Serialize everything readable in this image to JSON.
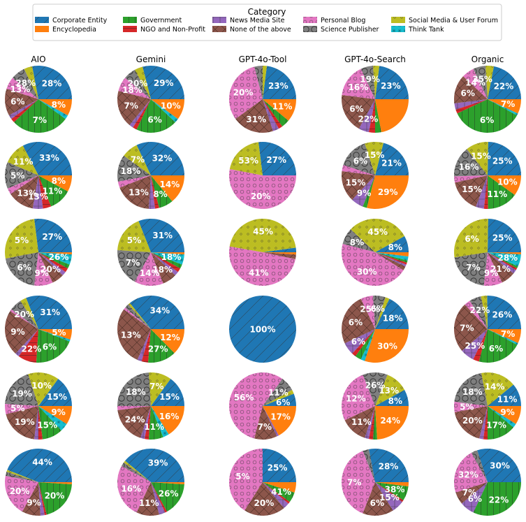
{
  "legend": {
    "title": "Category",
    "items": [
      {
        "label": "Corporate Entity",
        "color": "#1f77b4",
        "hatch": "slash"
      },
      {
        "label": "Encyclopedia",
        "color": "#ff7f0e",
        "hatch": "none"
      },
      {
        "label": "Government",
        "color": "#2ca02c",
        "hatch": "vline"
      },
      {
        "label": "NGO and Non-Profit",
        "color": "#d62728",
        "hatch": "hline"
      },
      {
        "label": "News Media Site",
        "color": "#9467bd",
        "hatch": "grid"
      },
      {
        "label": "None of the above",
        "color": "#8c564b",
        "hatch": "cross"
      },
      {
        "label": "Personal Blog",
        "color": "#e377c2",
        "hatch": "circle"
      },
      {
        "label": "Science Publisher",
        "color": "#7f7f7f",
        "hatch": "bigcircle"
      },
      {
        "label": "Social Media & User Forum",
        "color": "#bcbd22",
        "hatch": "dot"
      },
      {
        "label": "Think Tank",
        "color": "#17becf",
        "hatch": "star"
      }
    ]
  },
  "chart_data": {
    "type": "pie",
    "columns": [
      "AIO",
      "Gemini",
      "GPT-4o-Tool",
      "GPT-4o-Search",
      "Organic"
    ],
    "rows": [
      [
        [
          28,
          0,
          4,
          7,
          6,
          13,
          2,
          2,
          28,
          2,
          8
        ],
        [
          29,
          0,
          4,
          6,
          7,
          18,
          2,
          2,
          20,
          2,
          10
        ],
        [
          23,
          0,
          2,
          4,
          31,
          20,
          3,
          2,
          4,
          0,
          11
        ],
        [
          23,
          0,
          3,
          6,
          16,
          19,
          5,
          3,
          3,
          0,
          22
        ],
        [
          22,
          0,
          4,
          6,
          6,
          14,
          3,
          2,
          35,
          1,
          7
        ]
      ],
      [
        [
          33,
          0,
          11,
          13,
          3,
          13,
          5,
          4,
          11,
          0,
          8
        ],
        [
          32,
          0,
          8,
          13,
          3,
          18,
          3,
          2,
          7,
          0,
          14
        ],
        [
          27,
          0,
          20,
          0,
          53,
          0,
          0,
          0,
          0,
          0,
          0
        ],
        [
          21,
          0,
          9,
          15,
          3,
          15,
          6,
          0,
          2,
          0,
          29
        ],
        [
          25,
          0,
          11,
          15,
          3,
          16,
          4,
          2,
          15,
          0,
          10
        ]
      ],
      [
        [
          27,
          0,
          26,
          20,
          9,
          6,
          2,
          2,
          2,
          5,
          1
        ],
        [
          31,
          0,
          18,
          18,
          14,
          7,
          2,
          2,
          2,
          5,
          1
        ],
        [
          2,
          0,
          41,
          0,
          45,
          2,
          0,
          0,
          0,
          0,
          1
        ],
        [
          8,
          0,
          30,
          8,
          45,
          2,
          1,
          1,
          1,
          2,
          2
        ],
        [
          25,
          0,
          28,
          21,
          9,
          7,
          2,
          1,
          1,
          6,
          1
        ]
      ],
      [
        [
          31,
          0,
          3,
          6,
          1,
          22,
          2,
          9,
          20,
          1,
          5
        ],
        [
          34,
          0,
          1,
          2,
          1,
          27,
          2,
          3,
          13,
          0,
          12
        ],
        [
          100,
          0,
          0,
          0,
          0,
          0,
          0,
          0,
          0,
          0,
          0
        ],
        [
          18,
          0,
          2,
          6,
          6,
          25,
          6,
          2,
          3,
          2,
          30
        ],
        [
          26,
          0,
          3,
          6,
          3,
          25,
          7,
          3,
          22,
          1,
          7
        ]
      ],
      [
        [
          15,
          0,
          15,
          19,
          5,
          19,
          2,
          2,
          10,
          4,
          9
        ],
        [
          15,
          0,
          11,
          24,
          2,
          18,
          2,
          2,
          7,
          3,
          16
        ],
        [
          6,
          0,
          2,
          7,
          56,
          11,
          1,
          0,
          0,
          0,
          17
        ],
        [
          8,
          0,
          11,
          12,
          26,
          13,
          2,
          2,
          2,
          0,
          24
        ],
        [
          11,
          0,
          17,
          20,
          5,
          18,
          2,
          2,
          14,
          2,
          9
        ]
      ],
      [
        [
          44,
          0,
          1,
          2,
          20,
          9,
          2,
          1,
          20,
          0,
          1
        ],
        [
          39,
          0,
          1,
          2,
          26,
          11,
          3,
          1,
          16,
          0,
          1
        ],
        [
          25,
          0,
          0,
          0,
          41,
          20,
          3,
          1,
          5,
          0,
          5
        ],
        [
          28,
          0,
          0,
          3,
          38,
          15,
          6,
          1,
          7,
          0,
          2
        ],
        [
          30,
          0,
          0,
          3,
          22,
          6,
          7,
          0,
          32,
          0,
          0
        ]
      ]
    ],
    "labels": [
      [
        [
          "28%",
          "28%",
          "13%",
          "6%",
          "7%",
          "8%"
        ],
        [
          "29%",
          "20%",
          "18%",
          "7%",
          "6%",
          "10%"
        ],
        [
          "23%",
          "20%",
          "31%",
          "11%"
        ],
        [
          "23%",
          "19%",
          "16%",
          "6%",
          "22%"
        ],
        [
          "22%",
          "35%",
          "14%",
          "6%",
          "6%",
          "7%"
        ]
      ],
      [
        [
          "33%",
          "11%",
          "5%",
          "13%",
          "13%",
          "11%",
          "8%"
        ],
        [
          "32%",
          "7%",
          "18%",
          "13%",
          "8%",
          "14%"
        ],
        [
          "27%",
          "53%",
          "20%"
        ],
        [
          "21%",
          "15%",
          "6%",
          "15%",
          "9%",
          "29%"
        ],
        [
          "25%",
          "15%",
          "16%",
          "15%",
          "11%",
          "10%"
        ]
      ],
      [
        [
          "27%",
          "5%",
          "6%",
          "9%",
          "20%",
          "26%"
        ],
        [
          "31%",
          "5%",
          "7%",
          "14%",
          "18%",
          "18%"
        ],
        [
          "45%",
          "41%"
        ],
        [
          "8%",
          "45%",
          "8%",
          "30%"
        ],
        [
          "25%",
          "6%",
          "7%",
          "9%",
          "21%",
          "28%"
        ]
      ],
      [
        [
          "31%",
          "20%",
          "9%",
          "22%",
          "6%",
          "5%"
        ],
        [
          "34%",
          "13%",
          "27%",
          "12%"
        ],
        [
          "100%"
        ],
        [
          "18%",
          "6%",
          "25%",
          "6%",
          "6%",
          "30%"
        ],
        [
          "26%",
          "22%",
          "7%",
          "25%",
          "6%",
          "7%"
        ]
      ],
      [
        [
          "15%",
          "10%",
          "19%",
          "5%",
          "19%",
          "15%",
          "9%"
        ],
        [
          "15%",
          "7%",
          "18%",
          "24%",
          "11%",
          "16%"
        ],
        [
          "6%",
          "11%",
          "56%",
          "7%",
          "17%"
        ],
        [
          "8%",
          "13%",
          "26%",
          "12%",
          "11%",
          "24%"
        ],
        [
          "11%",
          "14%",
          "18%",
          "5%",
          "20%",
          "17%",
          "9%"
        ]
      ],
      [
        [
          "44%",
          "20%",
          "9%",
          "20%"
        ],
        [
          "39%",
          "16%",
          "11%",
          "26%"
        ],
        [
          "25%",
          "5%",
          "20%",
          "41%"
        ],
        [
          "28%",
          "7%",
          "6%",
          "15%",
          "38%"
        ],
        [
          "30%",
          "32%",
          "7%",
          "6%",
          "22%"
        ]
      ]
    ]
  }
}
